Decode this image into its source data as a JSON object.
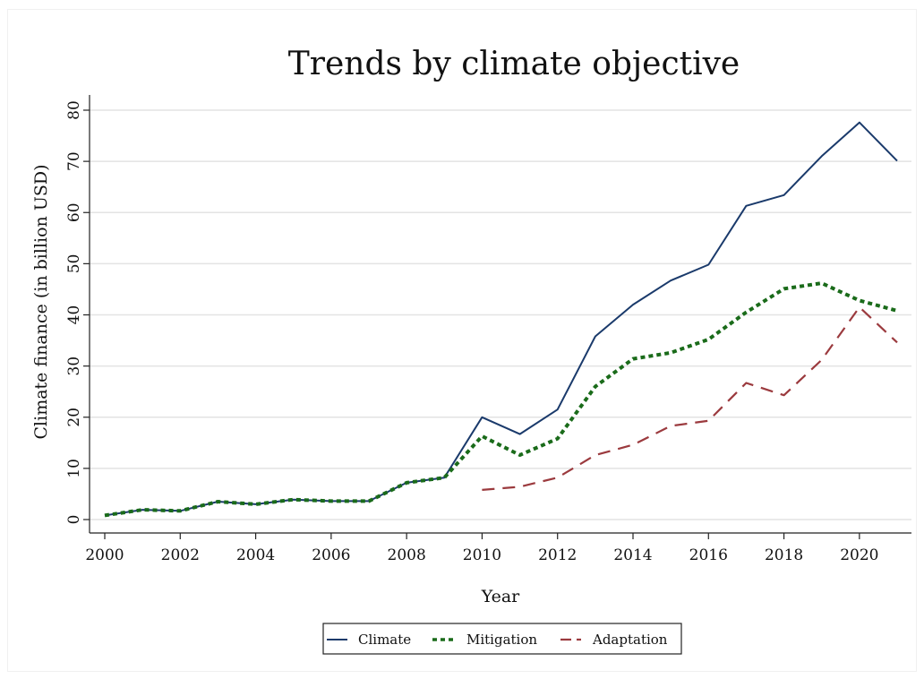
{
  "chart_data": {
    "type": "line",
    "title": "Trends by climate objective",
    "xlabel": "Year",
    "ylabel": "Climate finance (in billion USD)",
    "xlim": [
      2000,
      2021
    ],
    "ylim": [
      0,
      80
    ],
    "x_ticks": [
      2000,
      2002,
      2004,
      2006,
      2008,
      2010,
      2012,
      2014,
      2016,
      2018,
      2020
    ],
    "y_ticks": [
      0,
      10,
      20,
      30,
      40,
      50,
      60,
      70,
      80
    ],
    "grid": true,
    "legend_position": "bottom",
    "series": [
      {
        "name": "Climate",
        "color": "#1a3a6b",
        "style": "solid",
        "x": [
          2000,
          2001,
          2002,
          2003,
          2004,
          2005,
          2006,
          2007,
          2008,
          2009,
          2010,
          2011,
          2012,
          2013,
          2014,
          2015,
          2016,
          2017,
          2018,
          2019,
          2020,
          2021
        ],
        "y": [
          0.8,
          1.9,
          1.7,
          3.5,
          3.0,
          3.9,
          3.6,
          3.6,
          7.2,
          8.2,
          20.0,
          16.7,
          21.5,
          35.8,
          42.0,
          46.7,
          49.8,
          61.3,
          63.4,
          71.0,
          77.6,
          70.1
        ]
      },
      {
        "name": "Mitigation",
        "color": "#1a6b1a",
        "style": "dotted",
        "x": [
          2000,
          2001,
          2002,
          2003,
          2004,
          2005,
          2006,
          2007,
          2008,
          2009,
          2010,
          2011,
          2012,
          2013,
          2014,
          2015,
          2016,
          2017,
          2018,
          2019,
          2020,
          2021
        ],
        "y": [
          0.8,
          1.9,
          1.7,
          3.5,
          3.0,
          3.9,
          3.6,
          3.6,
          7.2,
          8.2,
          16.3,
          12.6,
          15.8,
          26.0,
          31.4,
          32.6,
          35.2,
          40.5,
          45.1,
          46.2,
          42.8,
          40.8
        ]
      },
      {
        "name": "Adaptation",
        "color": "#9b3a3e",
        "style": "dashed",
        "x": [
          2010,
          2011,
          2012,
          2013,
          2014,
          2015,
          2016,
          2017,
          2018,
          2019,
          2020,
          2021
        ],
        "y": [
          5.8,
          6.4,
          8.2,
          12.6,
          14.6,
          18.3,
          19.3,
          26.7,
          24.3,
          31.2,
          41.5,
          34.6
        ]
      }
    ]
  }
}
